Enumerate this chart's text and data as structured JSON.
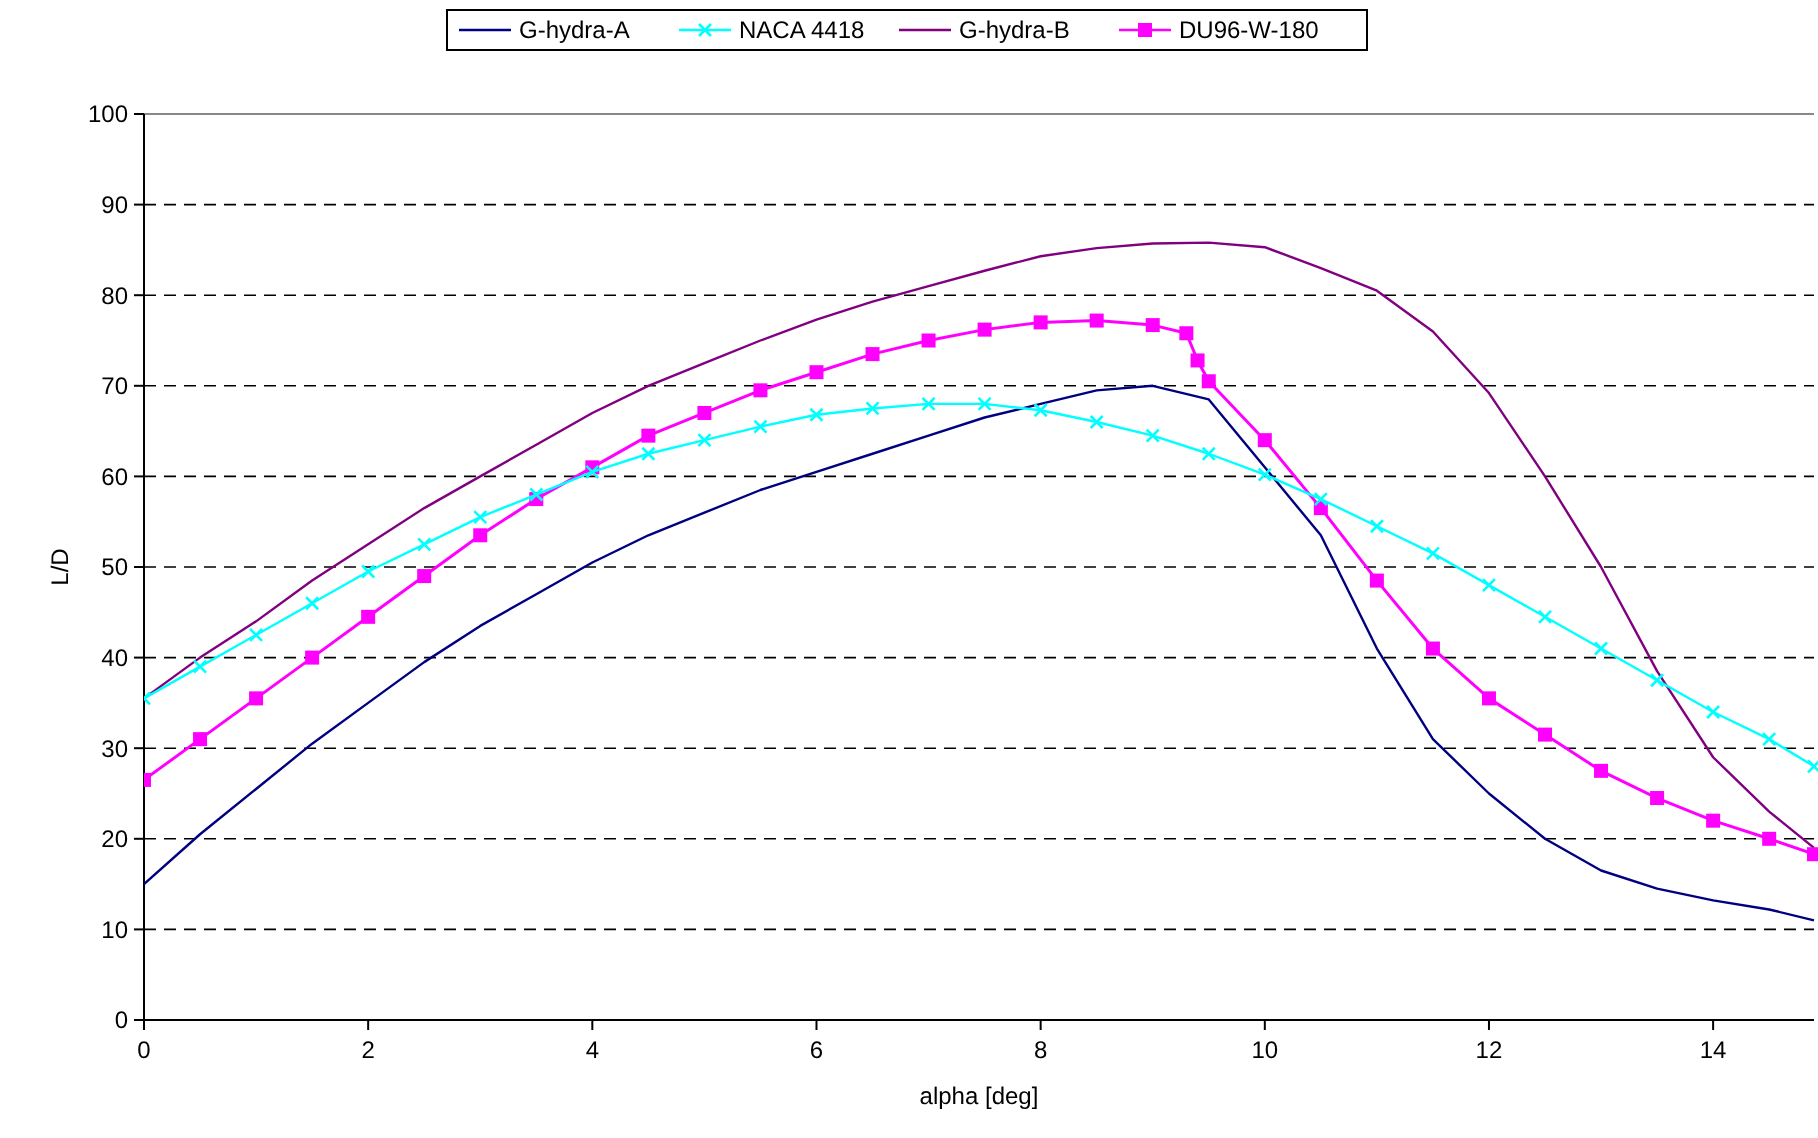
{
  "chart_data": {
    "type": "line",
    "xlabel": "alpha [deg]",
    "ylabel": "L/D",
    "x": [
      0,
      0.5,
      1,
      1.5,
      2,
      2.5,
      3,
      3.5,
      4,
      4.5,
      5,
      5.5,
      6,
      6.5,
      7,
      7.5,
      8,
      8.5,
      9,
      9.5,
      10,
      10.5,
      11,
      11.5,
      12,
      12.5,
      13,
      13.5,
      14,
      14.5,
      14.9
    ],
    "series": [
      {
        "name": "G-hydra-A",
        "color": "#000080",
        "marker": "none",
        "values": [
          15,
          20.5,
          25.5,
          30.5,
          35,
          39.5,
          43.5,
          47,
          50.5,
          53.5,
          56,
          58.5,
          60.5,
          62.5,
          64.5,
          66.5,
          68,
          69.5,
          70,
          68.5,
          61,
          53.5,
          41,
          31,
          25,
          20,
          16.5,
          14.5,
          13.2,
          12.2,
          11
        ]
      },
      {
        "name": "NACA 4418",
        "color": "#00ffff",
        "marker": "cross",
        "values": [
          35.5,
          39,
          42.5,
          46,
          49.5,
          52.5,
          55.5,
          58,
          60.5,
          62.5,
          64,
          65.5,
          66.8,
          67.5,
          68,
          68,
          67.3,
          66,
          64.5,
          62.5,
          60.2,
          57.5,
          54.5,
          51.5,
          48,
          44.5,
          41,
          37.5,
          34,
          31,
          28
        ]
      },
      {
        "name": "G-hydra-B",
        "color": "#800080",
        "marker": "none",
        "values": [
          35.5,
          40,
          44,
          48.5,
          52.5,
          56.5,
          60,
          63.5,
          67,
          70,
          72.5,
          75,
          77.3,
          79.3,
          81,
          82.7,
          84.3,
          85.2,
          85.7,
          85.8,
          85.3,
          83,
          80.5,
          76,
          69.2,
          60,
          50,
          38.5,
          29,
          23,
          19
        ]
      },
      {
        "name": "DU96-W-180",
        "color": "#ff00ff",
        "marker": "square",
        "x": [
          0,
          0.5,
          1,
          1.5,
          2,
          2.5,
          3,
          3.5,
          4,
          4.5,
          5,
          5.5,
          6,
          6.5,
          7,
          7.5,
          8,
          8.5,
          9,
          9.3,
          9.4,
          9.5,
          10,
          10.5,
          11,
          11.5,
          12,
          12.5,
          13,
          13.5,
          14,
          14.5,
          14.9
        ],
        "values": [
          26.5,
          31,
          35.5,
          40,
          44.5,
          49,
          53.5,
          57.5,
          61,
          64.5,
          67,
          69.5,
          71.5,
          73.5,
          75,
          76.2,
          77,
          77.2,
          76.7,
          75.8,
          72.8,
          70.5,
          64,
          56.5,
          48.5,
          41,
          35.5,
          31.5,
          27.5,
          24.5,
          22,
          20,
          18.3
        ]
      }
    ],
    "xlim": [
      0,
      14.9
    ],
    "xticks": [
      0,
      2,
      4,
      6,
      8,
      10,
      12,
      14
    ],
    "ylim": [
      0,
      100
    ],
    "yticks": [
      0,
      10,
      20,
      30,
      40,
      50,
      60,
      70,
      80,
      90,
      100
    ],
    "grid": "y",
    "legend": "top"
  }
}
